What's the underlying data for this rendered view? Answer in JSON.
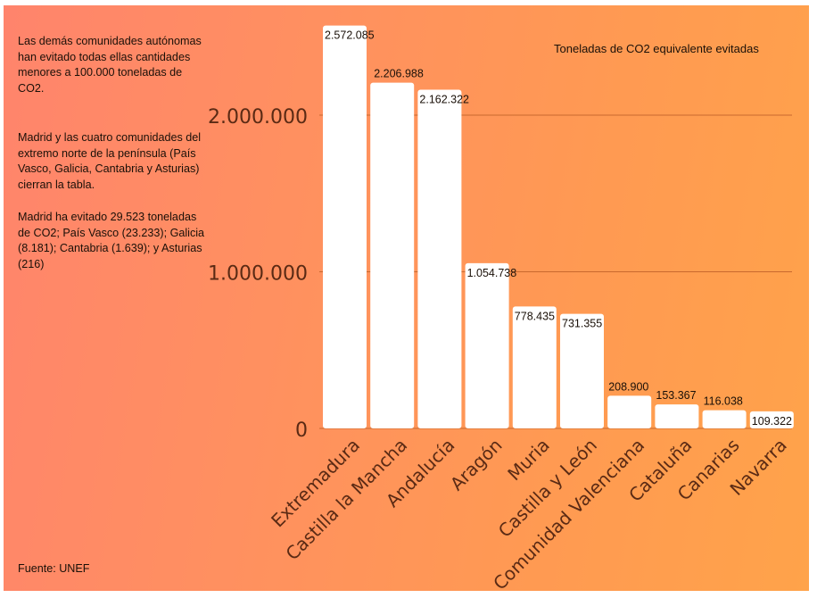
{
  "notes": [
    "Las demás comunidades autónomas han evitado todas ellas cantidades menores a 100.000 toneladas de CO2.",
    "Madrid y las cuatro comunidades del extremo norte de la península (País Vasco, Galicia, Cantabria y Asturias) cierran la tabla.",
    "Madrid ha evitado 29.523 toneladas de CO2; País Vasco (23.233); Galicia (8.181); Cantabria (1.639); y Asturias (216)"
  ],
  "source": "Fuente: UNEF",
  "colors": {
    "bar": "#ffffff",
    "gridline": "#c8692e",
    "tick_text": "#5a2a14",
    "label_text": "#1a1008"
  },
  "chart_data": {
    "type": "bar",
    "title": "",
    "legend": "Toneladas de CO2 equivalente evitadas",
    "legend_position": "top-right",
    "xlabel": "",
    "ylabel": "",
    "ylim": [
      0,
      2700000
    ],
    "yticks": [
      0,
      1000000,
      2000000
    ],
    "ytick_labels": [
      "0",
      "1.000.000",
      "2.000.000"
    ],
    "grid": true,
    "categories": [
      "Extremadura",
      "Castilla la Mancha",
      "Andalucía",
      "Aragón",
      "Muria",
      "Castilla y León",
      "Comunidad Valenciana",
      "Cataluña",
      "Canarias",
      "Navarra"
    ],
    "values": [
      2572085,
      2206988,
      2162322,
      1054738,
      778435,
      731355,
      208900,
      153367,
      116038,
      109322
    ],
    "data_labels": [
      "2.572.085",
      "2.206.988",
      "2.162.322",
      "1.054.738",
      "778.435",
      "731.355",
      "208.900",
      "153.367",
      "116.038",
      "109.322"
    ]
  }
}
